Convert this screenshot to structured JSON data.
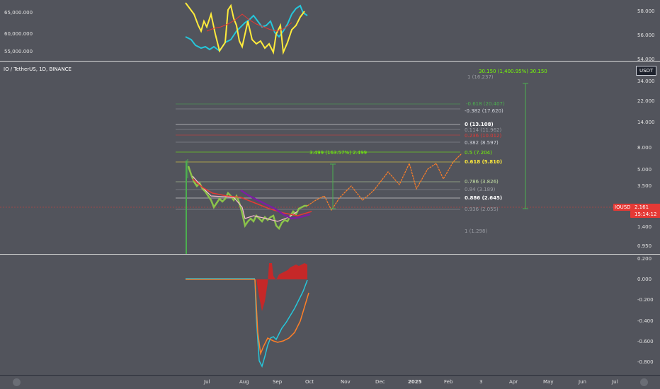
{
  "top_pane": {
    "left_labels": [
      "65,000.000",
      "60,000.000",
      "55,000.000"
    ],
    "right_labels": [
      "58.000",
      "56.000",
      "54.000"
    ]
  },
  "main_pane": {
    "symbol": "IO / TetherUS, 1D, BINANCE",
    "currency": "USDT",
    "price_ticks": [
      "34.000",
      "22.000",
      "14.000",
      "8.000",
      "5.000",
      "3.500",
      "1.400",
      "0.950"
    ],
    "current_price": {
      "ticker": "IOUSDT",
      "price": "2.161",
      "countdown": "15:14:12"
    },
    "fib_levels": [
      {
        "label": "1 (16.237)",
        "color": "#9a9ca3"
      },
      {
        "label": "-0.618 (20.407)",
        "color": "#4caf50"
      },
      {
        "label": "-0.382 (17.620)",
        "color": "#d1d4dc"
      },
      {
        "label": "0 (13.108)",
        "color": "#ffffff"
      },
      {
        "label": "0.114 (11.962)",
        "color": "#9a9ca3"
      },
      {
        "label": "0.236 (10.012)",
        "color": "#e53935"
      },
      {
        "label": "0.382 (8.597)",
        "color": "#d1d4dc"
      },
      {
        "label": "0.5 (7.204)",
        "color": "#76ff03"
      },
      {
        "label": "0.618 (5.810)",
        "color": "#ffeb3b"
      },
      {
        "label": "0.786 (3.826)",
        "color": "#c5e1a5"
      },
      {
        "label": "0.84 (3.189)",
        "color": "#9a9ca3"
      },
      {
        "label": "0.886 (2.645)",
        "color": "#ffffff"
      },
      {
        "label": "0.936 (2.055)",
        "color": "#9a9ca3"
      },
      {
        "label": "1 (1.298)",
        "color": "#9a9ca3"
      }
    ],
    "measure_1": "3.499 (163.57%) 2.499",
    "measure_2": "30.150 (1,400.95%) 30.150"
  },
  "osc_pane": {
    "ticks": [
      "0.200",
      "0.000",
      "-0.200",
      "-0.400",
      "-0.600",
      "-0.800"
    ]
  },
  "time_axis": [
    "Jul",
    "Aug",
    "Sep",
    "Oct",
    "Nov",
    "Dec",
    "2025",
    "Feb",
    "3",
    "Apr",
    "May",
    "Jun",
    "Jul"
  ],
  "colors": {
    "background": "#52545c",
    "bull": "#4caf50",
    "bear": "#e53935",
    "purple": "#7b1fa2",
    "cyan": "#26c6da",
    "yellow": "#ffeb3b",
    "orange": "#ff7f27"
  }
}
